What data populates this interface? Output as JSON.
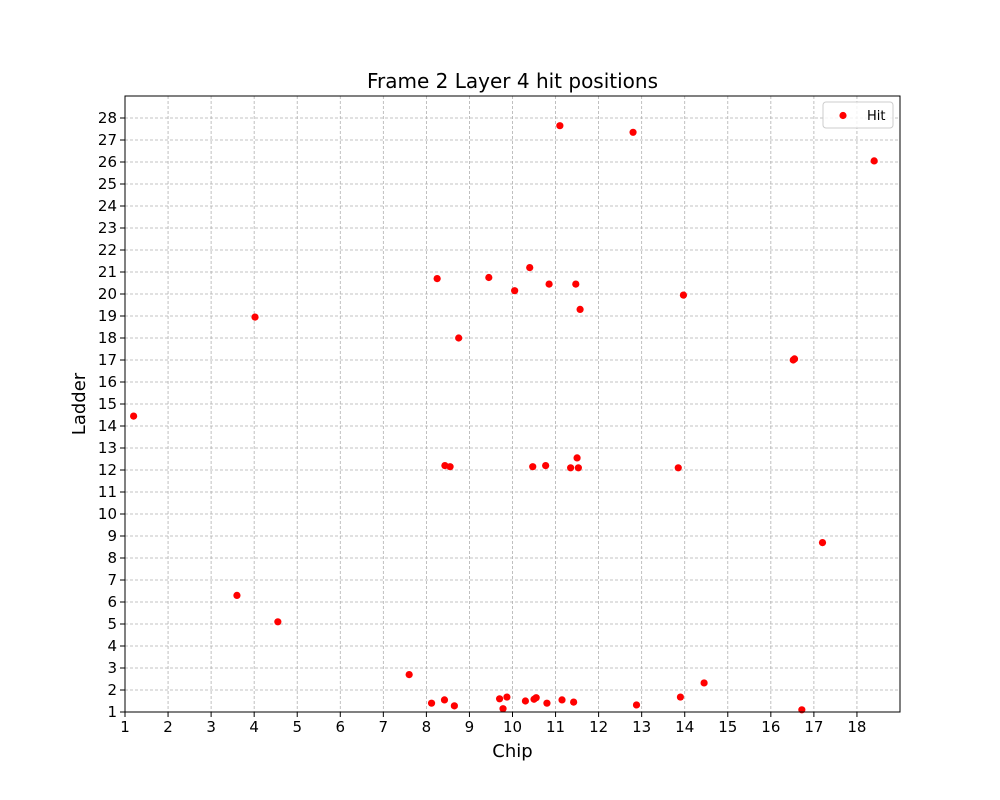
{
  "chart_data": {
    "type": "scatter",
    "title": "Frame 2 Layer 4 hit positions",
    "xlabel": "Chip",
    "ylabel": "Ladder",
    "xlim": [
      1,
      19
    ],
    "ylim": [
      1,
      29
    ],
    "xticks": [
      1,
      2,
      3,
      4,
      5,
      6,
      7,
      8,
      9,
      10,
      11,
      12,
      13,
      14,
      15,
      16,
      17,
      18
    ],
    "yticks": [
      1,
      2,
      3,
      4,
      5,
      6,
      7,
      8,
      9,
      10,
      11,
      12,
      13,
      14,
      15,
      16,
      17,
      18,
      19,
      20,
      21,
      22,
      23,
      24,
      25,
      26,
      27,
      28
    ],
    "grid": true,
    "legend_position": "top-right",
    "series": [
      {
        "name": "Hit",
        "color": "#ff0000",
        "points": [
          [
            1.2,
            14.45
          ],
          [
            3.6,
            6.3
          ],
          [
            4.55,
            5.1
          ],
          [
            4.02,
            18.95
          ],
          [
            7.6,
            2.7
          ],
          [
            8.12,
            1.4
          ],
          [
            8.42,
            1.55
          ],
          [
            8.65,
            1.28
          ],
          [
            8.25,
            20.7
          ],
          [
            8.75,
            18.0
          ],
          [
            8.43,
            12.2
          ],
          [
            8.55,
            12.15
          ],
          [
            9.45,
            20.75
          ],
          [
            9.7,
            1.6
          ],
          [
            9.78,
            1.15
          ],
          [
            9.87,
            1.68
          ],
          [
            10.05,
            20.15
          ],
          [
            10.3,
            1.5
          ],
          [
            10.4,
            21.2
          ],
          [
            10.5,
            1.58
          ],
          [
            10.47,
            12.15
          ],
          [
            10.55,
            1.65
          ],
          [
            10.77,
            12.2
          ],
          [
            10.8,
            1.4
          ],
          [
            10.85,
            20.45
          ],
          [
            11.1,
            27.65
          ],
          [
            11.15,
            1.55
          ],
          [
            11.35,
            12.1
          ],
          [
            11.42,
            1.45
          ],
          [
            11.47,
            20.45
          ],
          [
            11.5,
            12.55
          ],
          [
            11.53,
            12.1
          ],
          [
            11.57,
            19.3
          ],
          [
            12.8,
            27.35
          ],
          [
            12.88,
            1.32
          ],
          [
            13.85,
            12.1
          ],
          [
            13.9,
            1.68
          ],
          [
            13.97,
            19.95
          ],
          [
            14.45,
            2.32
          ],
          [
            16.52,
            17.0
          ],
          [
            16.55,
            17.05
          ],
          [
            16.72,
            1.1
          ],
          [
            17.2,
            8.7
          ],
          [
            18.4,
            26.05
          ]
        ]
      }
    ]
  },
  "colors": {
    "marker": "#ff0000",
    "grid": "#b0b0b0",
    "axes": "#000000"
  }
}
